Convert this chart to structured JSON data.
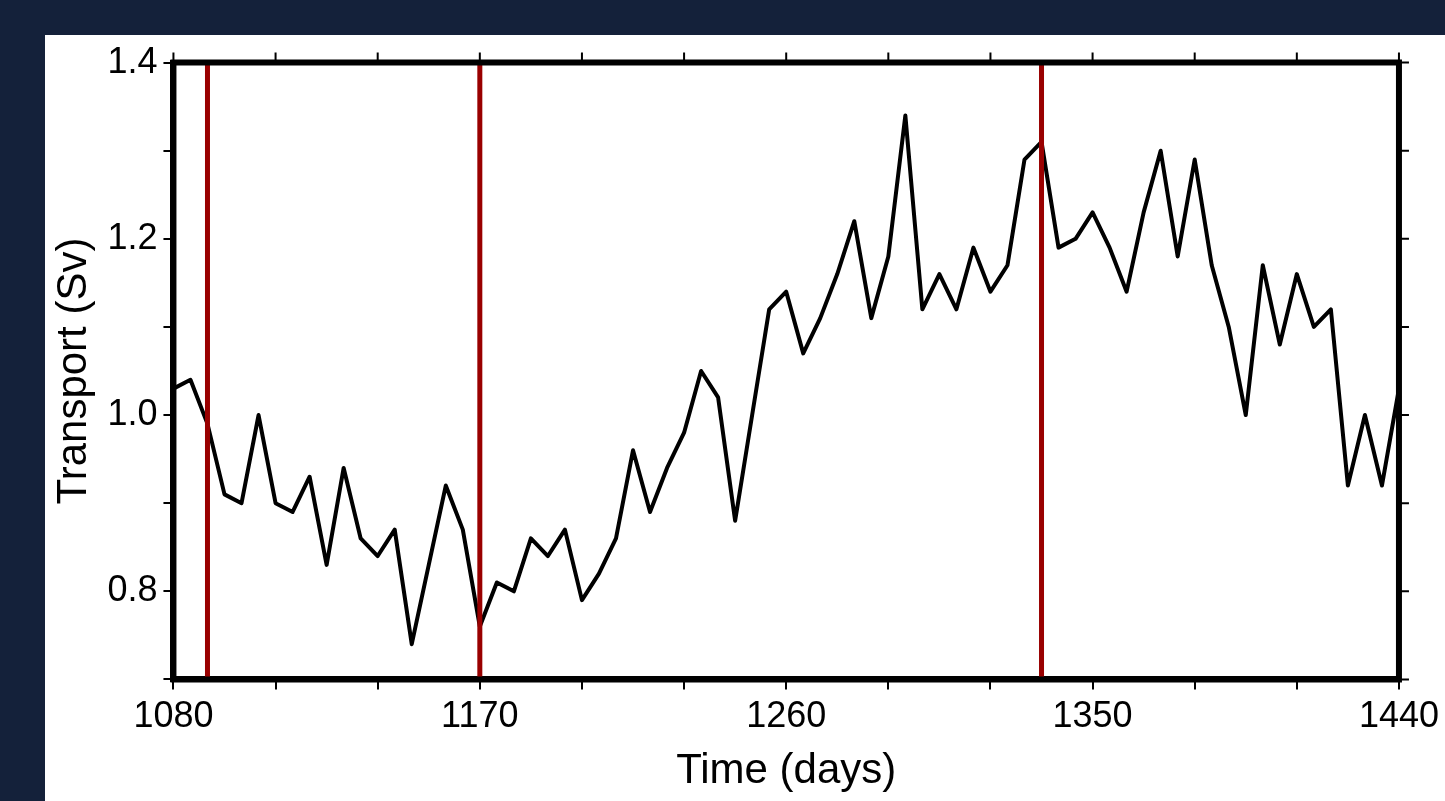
{
  "chart_data": {
    "type": "line",
    "xlabel": "Time (days)",
    "ylabel": "Transport (Sv)",
    "x": [
      1080,
      1085,
      1090,
      1095,
      1100,
      1105,
      1110,
      1115,
      1120,
      1125,
      1130,
      1135,
      1140,
      1145,
      1150,
      1155,
      1160,
      1165,
      1170,
      1175,
      1180,
      1185,
      1190,
      1195,
      1200,
      1205,
      1210,
      1215,
      1220,
      1225,
      1230,
      1235,
      1240,
      1245,
      1250,
      1255,
      1260,
      1265,
      1270,
      1275,
      1280,
      1285,
      1290,
      1295,
      1300,
      1305,
      1310,
      1315,
      1320,
      1325,
      1330,
      1335,
      1340,
      1345,
      1350,
      1355,
      1360,
      1365,
      1370,
      1375,
      1380,
      1385,
      1390,
      1395,
      1400,
      1405,
      1410,
      1415,
      1420,
      1425,
      1430,
      1435,
      1440
    ],
    "series": [
      {
        "color": "#000000",
        "values": [
          1.03,
          1.04,
          0.99,
          0.91,
          0.9,
          1.0,
          0.9,
          0.89,
          0.93,
          0.83,
          0.94,
          0.86,
          0.84,
          0.87,
          0.74,
          0.83,
          0.92,
          0.87,
          0.76,
          0.81,
          0.8,
          0.86,
          0.84,
          0.87,
          0.79,
          0.82,
          0.86,
          0.96,
          0.89,
          0.94,
          0.98,
          1.05,
          1.02,
          0.88,
          1.0,
          1.12,
          1.14,
          1.07,
          1.11,
          1.16,
          1.22,
          1.11,
          1.18,
          1.34,
          1.12,
          1.16,
          1.12,
          1.19,
          1.14,
          1.17,
          1.29,
          1.31,
          1.19,
          1.2,
          1.23,
          1.19,
          1.14,
          1.23,
          1.3,
          1.18,
          1.29,
          1.17,
          1.1,
          1.0,
          1.17,
          1.08,
          1.16,
          1.1,
          1.12,
          0.92,
          1.0,
          0.92,
          1.03
        ]
      }
    ],
    "xlim": [
      1080,
      1440
    ],
    "xticks": [
      1080,
      {
        "value": 1110,
        "label": null
      },
      {
        "value": 1140,
        "label": null
      },
      1170,
      {
        "value": 1200,
        "label": null
      },
      {
        "value": 1230,
        "label": null
      },
      1260,
      {
        "value": 1290,
        "label": null
      },
      {
        "value": 1320,
        "label": null
      },
      1350,
      {
        "value": 1380,
        "label": null
      },
      {
        "value": 1410,
        "label": null
      },
      1440
    ],
    "ylim": [
      0.7,
      1.4
    ],
    "yticks": [
      {
        "value": 0.7,
        "label": null
      },
      {
        "value": 0.8,
        "label": "0.8"
      },
      {
        "value": 0.9,
        "label": null
      },
      {
        "value": 1.0,
        "label": "1.0"
      },
      {
        "value": 1.1,
        "label": null
      },
      {
        "value": 1.2,
        "label": "1.2"
      },
      {
        "value": 1.3,
        "label": null
      },
      {
        "value": 1.4,
        "label": "1.4"
      }
    ],
    "ref_lines": [
      {
        "axis": "x",
        "value": 1090,
        "color": "#990000"
      },
      {
        "axis": "x",
        "value": 1170,
        "color": "#990000"
      },
      {
        "axis": "x",
        "value": 1335,
        "color": "#990000"
      }
    ],
    "grid": false,
    "legend": false,
    "marker": "none",
    "line_style": "solid"
  }
}
